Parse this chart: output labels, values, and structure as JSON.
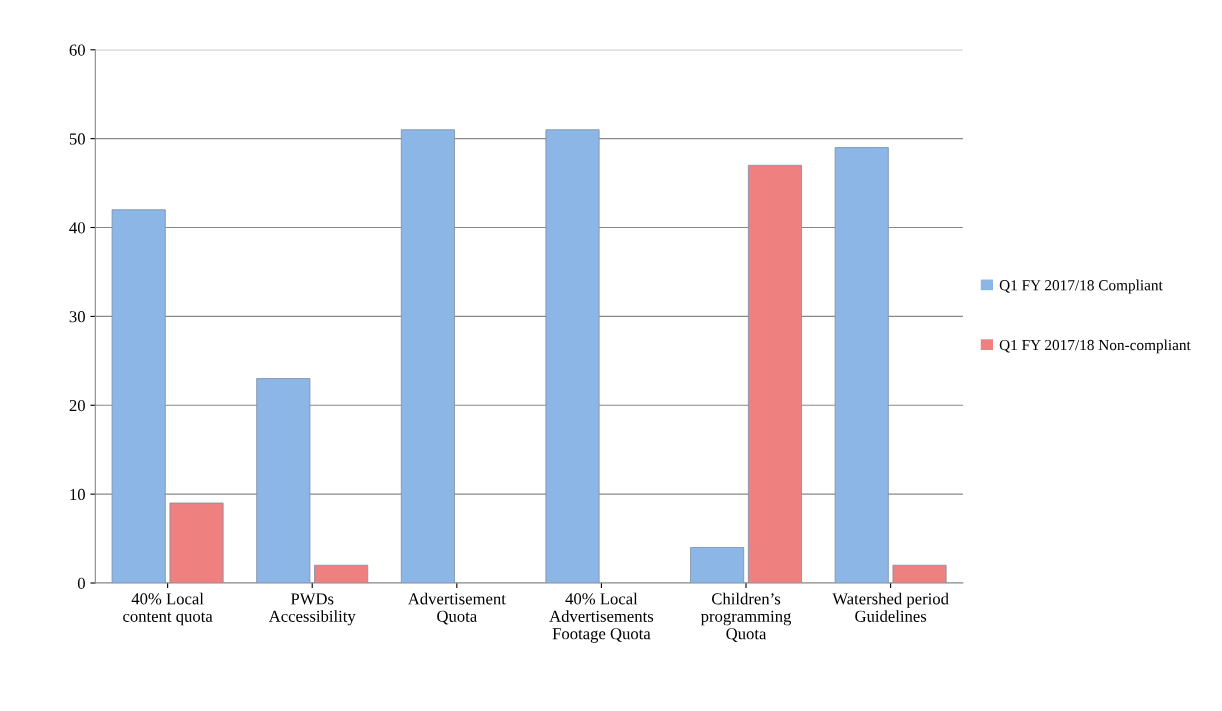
{
  "chart_data": {
    "type": "bar",
    "categories": [
      "40% Local\ncontent quota",
      "PWDs\nAccessibility",
      "Advertisement\nQuota",
      "40% Local\nAdvertisements\nFootage Quota",
      "Children’s\nprogramming\nQuota",
      "Watershed period\nGuidelines"
    ],
    "series": [
      {
        "name": "Q1 FY 2017/18 Compliant",
        "color": "#8cb6e6",
        "values": [
          42,
          23,
          51,
          51,
          4,
          49
        ]
      },
      {
        "name": "Q1 FY 2017/18 Non-compliant",
        "color": "#ee8080",
        "values": [
          9,
          2,
          null,
          null,
          47,
          2
        ]
      }
    ],
    "ylim": [
      0,
      60
    ],
    "yticks": [
      0,
      10,
      20,
      30,
      40,
      50,
      60
    ],
    "grid": "y",
    "legend": "right"
  }
}
